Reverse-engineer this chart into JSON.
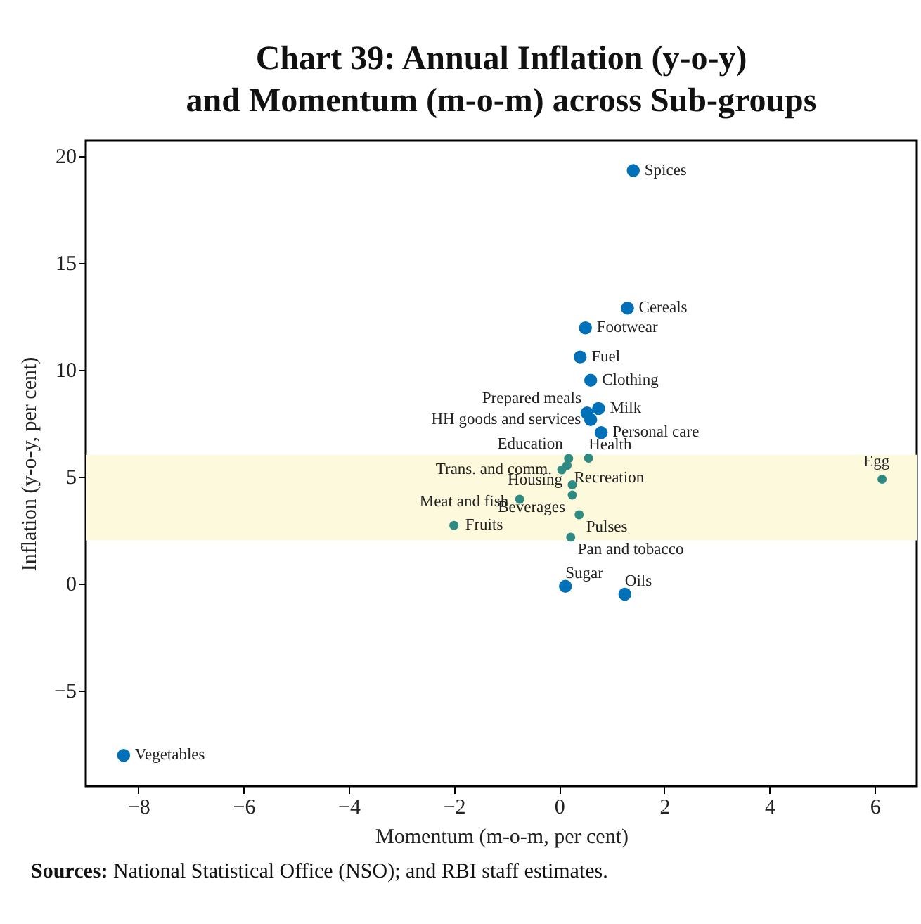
{
  "chart_data": {
    "type": "scatter",
    "title": "Chart 39: Annual Inflation (y-o-y) and Momentum (m-o-m) across Sub-groups",
    "xlabel": "Momentum (m-o-m, per cent)",
    "ylabel": "Inflation (y-o-y, per cent)",
    "series": [
      {
        "color": "#0070b8",
        "x": [
          1.41,
          1.3,
          0.5,
          0.4,
          0.6,
          0.75,
          0.53,
          0.6,
          0.8,
          0.12,
          1.25,
          -8.28
        ],
        "values": [
          19.3,
          12.86,
          11.94,
          10.58,
          9.49,
          8.17,
          7.96,
          7.65,
          7.04,
          -0.15,
          -0.52,
          -8.06
        ]
      },
      {
        "color": "#2e8b84",
        "x": [
          0.18,
          0.56,
          0.05,
          0.15,
          0.25,
          0.25,
          -0.75,
          0.38,
          -2.0,
          0.22,
          6.14
        ],
        "values": [
          5.83,
          5.85,
          5.3,
          5.5,
          4.6,
          4.12,
          3.92,
          3.2,
          2.7,
          2.15,
          4.86
        ]
      }
    ],
    "xlim": [
      -9,
      6.8
    ],
    "ylim": [
      -9.5,
      20.7
    ],
    "xticks": [
      -8,
      -6,
      -4,
      -2,
      0,
      2,
      4,
      6
    ],
    "yticks": [
      -5,
      0,
      5,
      10,
      15,
      20
    ],
    "grid": false,
    "marker": "circle",
    "bands": [
      {
        "axis": "y",
        "from": 2,
        "to": 6,
        "color": "#fdf9dc"
      }
    ],
    "annotations": [
      {
        "text": "Spices",
        "x": 1.41,
        "y": 19.3
      },
      {
        "text": "Cereals",
        "x": 1.3,
        "y": 12.86
      },
      {
        "text": "Footwear",
        "x": 0.5,
        "y": 11.94
      },
      {
        "text": "Fuel",
        "x": 0.4,
        "y": 10.58
      },
      {
        "text": "Clothing",
        "x": 0.6,
        "y": 9.49
      },
      {
        "text": "Milk",
        "x": 0.75,
        "y": 8.17
      },
      {
        "text": "Prepared meals",
        "x": 0.53,
        "y": 7.96
      },
      {
        "text": "HH goods and services",
        "x": 0.6,
        "y": 7.65
      },
      {
        "text": "Personal care",
        "x": 0.8,
        "y": 7.04
      },
      {
        "text": "Education",
        "x": 0.18,
        "y": 5.83
      },
      {
        "text": "Health",
        "x": 0.56,
        "y": 5.85
      },
      {
        "text": "Trans. and comm.",
        "x": 0.05,
        "y": 5.3
      },
      {
        "text": "Recreation",
        "x": 0.15,
        "y": 5.5
      },
      {
        "text": "Housing",
        "x": 0.25,
        "y": 4.6
      },
      {
        "text": "Beverages",
        "x": 0.25,
        "y": 4.12
      },
      {
        "text": "Meat and fish",
        "x": -0.75,
        "y": 3.92
      },
      {
        "text": "Pulses",
        "x": 0.38,
        "y": 3.2
      },
      {
        "text": "Fruits",
        "x": -2.0,
        "y": 2.7
      },
      {
        "text": "Pan and tobacco",
        "x": 0.22,
        "y": 2.15
      },
      {
        "text": "Sugar",
        "x": 0.12,
        "y": -0.15
      },
      {
        "text": "Oils",
        "x": 1.25,
        "y": -0.52
      },
      {
        "text": "Egg",
        "x": 6.14,
        "y": 4.86
      },
      {
        "text": "Vegetables",
        "x": -8.28,
        "y": -8.06
      },
      "Sources: National Statistical Office (NSO); and RBI staff estimates."
    ]
  }
}
